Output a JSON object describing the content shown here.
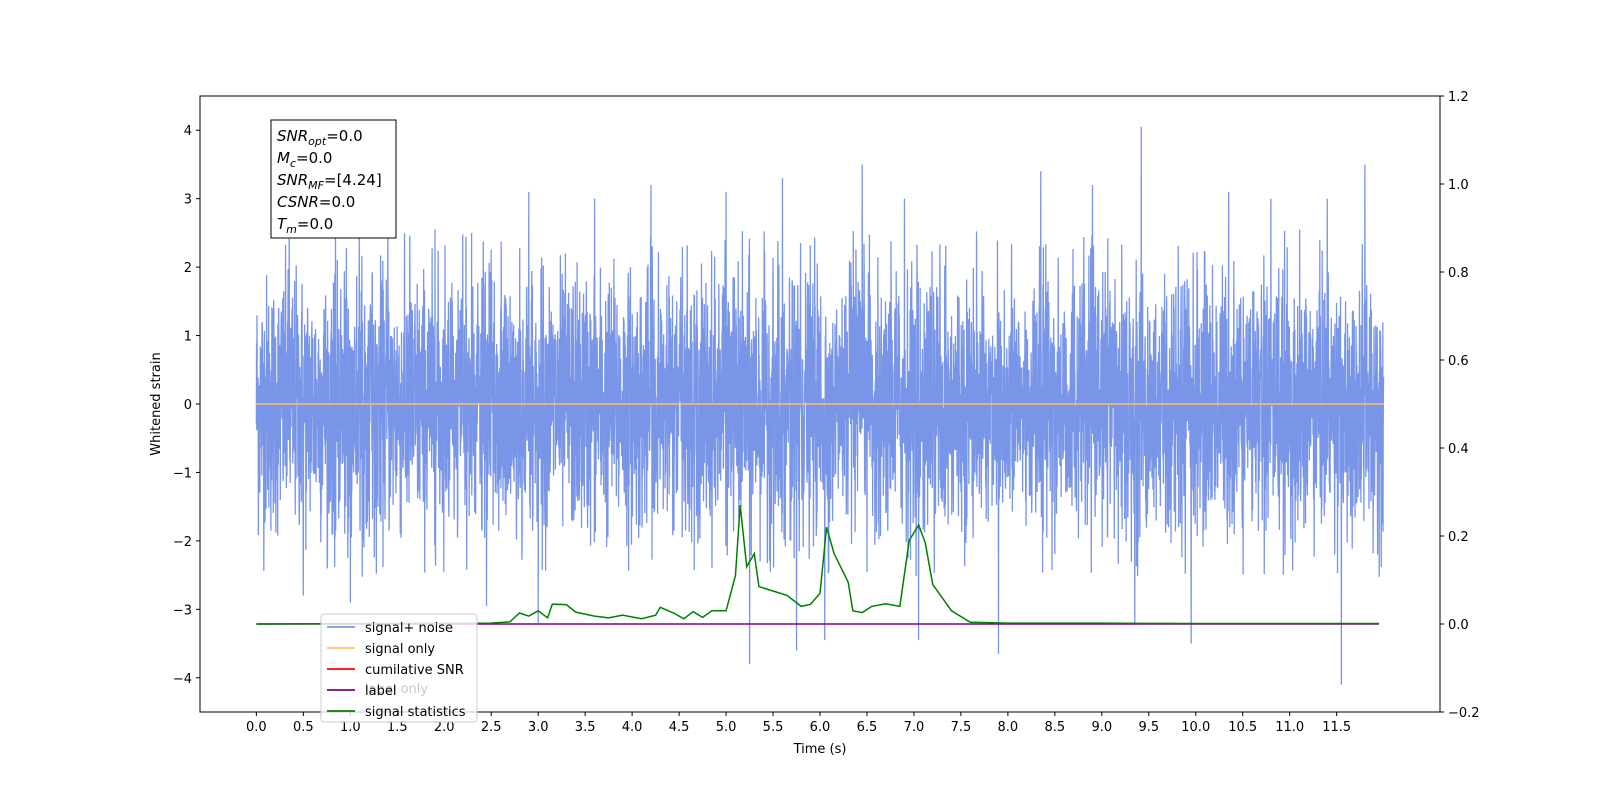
{
  "chart_data": {
    "type": "line",
    "title": "",
    "xlabel": "Time (s)",
    "ylabel": "Whitened strain",
    "xlim": [
      -0.6,
      12.6
    ],
    "ylim": [
      -4.5,
      4.5
    ],
    "y2lim": [
      -0.2,
      1.2
    ],
    "xticks": [
      0.0,
      0.5,
      1.0,
      1.5,
      2.0,
      2.5,
      3.0,
      3.5,
      4.0,
      4.5,
      5.0,
      5.5,
      6.0,
      6.5,
      7.0,
      7.5,
      8.0,
      8.5,
      9.0,
      9.5,
      10.0,
      10.5,
      11.0,
      11.5
    ],
    "xtick_labels": [
      "0.0",
      "0.5",
      "1.0",
      "1.5",
      "2.0",
      "2.5",
      "3.0",
      "3.5",
      "4.0",
      "4.5",
      "5.0",
      "5.5",
      "6.0",
      "6.5",
      "7.0",
      "7.5",
      "8.0",
      "8.5",
      "9.0",
      "9.5",
      "10.0",
      "10.5",
      "11.0",
      "11.5"
    ],
    "yticks": [
      -4,
      -3,
      -2,
      -1,
      0,
      1,
      2,
      3,
      4
    ],
    "ytick_labels": [
      "−4",
      "−3",
      "−2",
      "−1",
      "0",
      "1",
      "2",
      "3",
      "4"
    ],
    "y2ticks": [
      -0.2,
      0.0,
      0.2,
      0.4,
      0.6,
      0.8,
      1.0,
      1.2
    ],
    "y2tick_labels": [
      "−0.2",
      "0.0",
      "0.2",
      "0.4",
      "0.6",
      "0.8",
      "1.0",
      "1.2"
    ],
    "grid": false,
    "legend_placement": "lower-left",
    "legend": [
      "signal+ noise",
      "signal only",
      "cumilative SNR",
      "label",
      "signal statistics"
    ],
    "legend_ghost_text": [
      "label only"
    ],
    "series": [
      {
        "name": "signal+ noise",
        "axis": "left",
        "color": "#7895e8",
        "kind": "noise",
        "x_range": [
          0.0,
          12.0
        ],
        "typical_range": [
          -1.5,
          1.5
        ],
        "spikes": [
          {
            "x": 0.35,
            "y": 2.6
          },
          {
            "x": 0.5,
            "y": -2.8
          },
          {
            "x": 1.0,
            "y": -2.9
          },
          {
            "x": 1.4,
            "y": 2.7
          },
          {
            "x": 1.9,
            "y": 2.55
          },
          {
            "x": 2.45,
            "y": -2.95
          },
          {
            "x": 2.9,
            "y": 3.1
          },
          {
            "x": 3.0,
            "y": -3.2
          },
          {
            "x": 3.6,
            "y": 3.0
          },
          {
            "x": 4.2,
            "y": 3.2
          },
          {
            "x": 5.0,
            "y": 3.1
          },
          {
            "x": 5.25,
            "y": -3.8
          },
          {
            "x": 5.6,
            "y": 3.3
          },
          {
            "x": 5.75,
            "y": -3.6
          },
          {
            "x": 6.05,
            "y": -3.45
          },
          {
            "x": 6.45,
            "y": 3.5
          },
          {
            "x": 6.9,
            "y": 3.0
          },
          {
            "x": 7.05,
            "y": -3.45
          },
          {
            "x": 7.9,
            "y": -3.65
          },
          {
            "x": 8.35,
            "y": 3.4
          },
          {
            "x": 8.9,
            "y": 3.2
          },
          {
            "x": 9.35,
            "y": -3.2
          },
          {
            "x": 9.42,
            "y": 4.05
          },
          {
            "x": 9.95,
            "y": -3.5
          },
          {
            "x": 10.35,
            "y": 3.1
          },
          {
            "x": 10.8,
            "y": 3.0
          },
          {
            "x": 11.4,
            "y": 3.0
          },
          {
            "x": 11.55,
            "y": -4.1
          },
          {
            "x": 11.8,
            "y": 3.5
          }
        ]
      },
      {
        "name": "signal only",
        "axis": "left",
        "color": "#ffbf66",
        "x": [
          0.0,
          12.0
        ],
        "y": [
          0.0,
          0.0
        ]
      },
      {
        "name": "label",
        "axis": "right",
        "color": "#800080",
        "x": [
          0.0,
          11.95
        ],
        "y": [
          0.0,
          0.0
        ]
      },
      {
        "name": "signal statistics",
        "axis": "right",
        "color": "#008000",
        "x": [
          0.0,
          2.5,
          2.7,
          2.8,
          2.9,
          3.0,
          3.1,
          3.15,
          3.3,
          3.4,
          3.6,
          3.75,
          3.9,
          4.0,
          4.1,
          4.25,
          4.3,
          4.45,
          4.55,
          4.65,
          4.75,
          4.85,
          5.0,
          5.1,
          5.15,
          5.22,
          5.3,
          5.35,
          5.5,
          5.65,
          5.8,
          5.9,
          6.0,
          6.07,
          6.15,
          6.3,
          6.35,
          6.45,
          6.55,
          6.7,
          6.85,
          6.95,
          7.05,
          7.12,
          7.2,
          7.4,
          7.6,
          8.0,
          9.0,
          10.0,
          11.0,
          11.95
        ],
        "y": [
          0.0,
          0.002,
          0.005,
          0.025,
          0.018,
          0.03,
          0.014,
          0.045,
          0.044,
          0.027,
          0.018,
          0.014,
          0.02,
          0.016,
          0.012,
          0.02,
          0.038,
          0.024,
          0.012,
          0.028,
          0.015,
          0.03,
          0.03,
          0.11,
          0.27,
          0.13,
          0.16,
          0.085,
          0.075,
          0.065,
          0.04,
          0.045,
          0.07,
          0.22,
          0.16,
          0.095,
          0.03,
          0.026,
          0.04,
          0.046,
          0.04,
          0.19,
          0.225,
          0.185,
          0.09,
          0.03,
          0.004,
          0.002,
          0.002,
          0.001,
          0.001,
          0.001
        ]
      }
    ]
  },
  "info_box": {
    "lines": [
      {
        "label_main": "SNR",
        "label_sub": "opt",
        "value": "=0.0"
      },
      {
        "label_main": "M",
        "label_sub": "c",
        "value": "=0.0"
      },
      {
        "label_main": "SNR",
        "label_sub": "MF",
        "value": "=[4.24]"
      },
      {
        "label_main": "CSNR",
        "label_sub": "",
        "value": "=0.0"
      },
      {
        "label_main": "T",
        "label_sub": "m",
        "value": "=0.0"
      }
    ]
  },
  "colors": {
    "cumilative_snr": "#ff0000"
  }
}
